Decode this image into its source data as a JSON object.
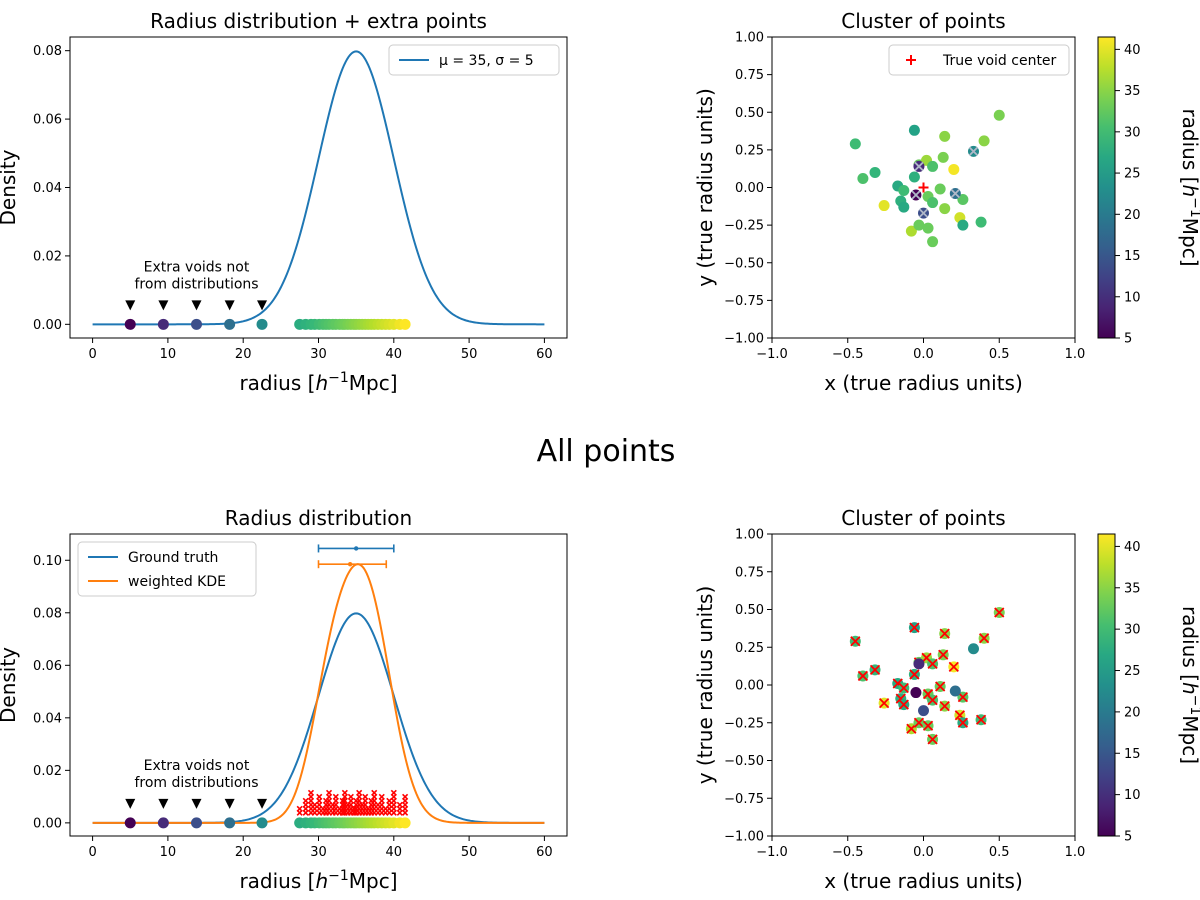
{
  "figure": {
    "suptitle": "All points"
  },
  "chart_data": [
    {
      "id": "top-left",
      "type": "line",
      "title": "Radius distribution + extra points",
      "xlabel": "radius [h⁻¹Mpc]",
      "ylabel": "Density",
      "xlim": [
        -3,
        63
      ],
      "ylim": [
        -0.004,
        0.084
      ],
      "xticks": [
        0,
        10,
        20,
        30,
        40,
        50,
        60
      ],
      "yticks": [
        0.0,
        0.02,
        0.04,
        0.06,
        0.08
      ],
      "yticklabels": [
        "0.00",
        "0.02",
        "0.04",
        "0.06",
        "0.08"
      ],
      "series": [
        {
          "name": "μ = 35, σ = 5",
          "kind": "gaussian",
          "mu": 35,
          "sigma": 5,
          "color": "#1f77b4"
        }
      ],
      "legend": {
        "position": "top-right",
        "entries": [
          {
            "label": "μ = 35, σ = 5",
            "color": "#1f77b4"
          }
        ]
      },
      "extra_voids": [
        5,
        9.4,
        13.8,
        18.2,
        22.5
      ],
      "points": [
        27.5,
        28.3,
        29.0,
        29.5,
        30.1,
        30.6,
        31.0,
        31.4,
        31.9,
        32.3,
        32.8,
        33.2,
        33.5,
        33.9,
        34.3,
        34.7,
        35.0,
        35.4,
        35.8,
        36.2,
        36.6,
        37.0,
        37.4,
        37.9,
        38.4,
        38.9,
        39.4,
        40.0,
        40.8,
        41.5
      ],
      "annotation": [
        "Extra voids not",
        "from distributions"
      ],
      "colormap": "viridis",
      "cmin": 5,
      "cmax": 41.5
    },
    {
      "id": "top-right",
      "type": "scatter",
      "title": "Cluster of points",
      "xlabel": "x (true radius units)",
      "ylabel": "y (true radius units)",
      "xlim": [
        -1,
        1
      ],
      "ylim": [
        -1,
        1
      ],
      "xticks": [
        -1.0,
        -0.5,
        0.0,
        0.5,
        1.0
      ],
      "yticks": [
        -1.0,
        -0.75,
        -0.5,
        -0.25,
        0.0,
        0.25,
        0.5,
        0.75,
        1.0
      ],
      "xticklabels": [
        "−1.0",
        "−0.5",
        "0.0",
        "0.5",
        "1.0"
      ],
      "yticklabels": [
        "−1.00",
        "−0.75",
        "−0.50",
        "−0.25",
        "0.00",
        "0.25",
        "0.50",
        "0.75",
        "1.00"
      ],
      "legend": {
        "position": "top-right",
        "entries": [
          {
            "label": "True void center",
            "color": "#ff0000",
            "marker": "+"
          }
        ]
      },
      "center": [
        0,
        0
      ],
      "points": [
        {
          "x": -0.45,
          "y": 0.29,
          "r": 30
        },
        {
          "x": -0.06,
          "y": 0.38,
          "r": 26
        },
        {
          "x": 0.5,
          "y": 0.48,
          "r": 34
        },
        {
          "x": 0.4,
          "y": 0.31,
          "r": 35
        },
        {
          "x": 0.14,
          "y": 0.34,
          "r": 35
        },
        {
          "x": 0.13,
          "y": 0.2,
          "r": 34
        },
        {
          "x": -0.4,
          "y": 0.06,
          "r": 31
        },
        {
          "x": -0.32,
          "y": 0.1,
          "r": 29
        },
        {
          "x": -0.17,
          "y": 0.01,
          "r": 27
        },
        {
          "x": -0.13,
          "y": -0.02,
          "r": 30
        },
        {
          "x": -0.06,
          "y": 0.07,
          "r": 28
        },
        {
          "x": -0.03,
          "y": 0.15,
          "r": 33
        },
        {
          "x": 0.02,
          "y": 0.18,
          "r": 36
        },
        {
          "x": 0.06,
          "y": 0.14,
          "r": 31
        },
        {
          "x": -0.26,
          "y": -0.12,
          "r": 40
        },
        {
          "x": -0.15,
          "y": -0.09,
          "r": 28
        },
        {
          "x": -0.13,
          "y": -0.13,
          "r": 27
        },
        {
          "x": 0.03,
          "y": -0.06,
          "r": 33
        },
        {
          "x": 0.06,
          "y": -0.1,
          "r": 31
        },
        {
          "x": 0.11,
          "y": -0.01,
          "r": 33
        },
        {
          "x": 0.14,
          "y": -0.14,
          "r": 35
        },
        {
          "x": 0.26,
          "y": -0.08,
          "r": 32
        },
        {
          "x": 0.24,
          "y": -0.2,
          "r": 39
        },
        {
          "x": 0.26,
          "y": -0.25,
          "r": 27
        },
        {
          "x": 0.38,
          "y": -0.23,
          "r": 30
        },
        {
          "x": 0.2,
          "y": 0.12,
          "r": 41
        },
        {
          "x": -0.08,
          "y": -0.29,
          "r": 37
        },
        {
          "x": -0.03,
          "y": -0.25,
          "r": 33
        },
        {
          "x": 0.06,
          "y": -0.36,
          "r": 33
        },
        {
          "x": 0.03,
          "y": -0.27,
          "r": 33
        },
        {
          "x": -0.05,
          "y": -0.05,
          "r": 5,
          "extra": true
        },
        {
          "x": -0.03,
          "y": 0.14,
          "r": 9.4,
          "extra": true
        },
        {
          "x": 0.0,
          "y": -0.17,
          "r": 13.8,
          "extra": true
        },
        {
          "x": 0.21,
          "y": -0.04,
          "r": 18.2,
          "extra": true
        },
        {
          "x": 0.33,
          "y": 0.24,
          "r": 22.5,
          "extra": true
        }
      ],
      "colorbar": {
        "label": "radius [h⁻¹Mpc]",
        "min": 5,
        "max": 41.5,
        "ticks": [
          5,
          10,
          15,
          20,
          25,
          30,
          35,
          40
        ]
      }
    },
    {
      "id": "bottom-left",
      "type": "line",
      "title": "Radius distribution",
      "xlabel": "radius [h⁻¹Mpc]",
      "ylabel": "Density",
      "xlim": [
        -3,
        63
      ],
      "ylim": [
        -0.005,
        0.11
      ],
      "xticks": [
        0,
        10,
        20,
        30,
        40,
        50,
        60
      ],
      "yticks": [
        0.0,
        0.02,
        0.04,
        0.06,
        0.08,
        0.1
      ],
      "yticklabels": [
        "0.00",
        "0.02",
        "0.04",
        "0.06",
        "0.08",
        "0.10"
      ],
      "series": [
        {
          "name": "Ground truth",
          "kind": "gaussian",
          "mu": 35,
          "sigma": 5,
          "color": "#1f77b4"
        },
        {
          "name": "weighted KDE",
          "kind": "mixture",
          "color": "#ff7f0e",
          "components": [
            {
              "w": 0.28,
              "mu": 31.5,
              "sigma": 2.7
            },
            {
              "w": 0.72,
              "mu": 36.3,
              "sigma": 3.3
            }
          ]
        }
      ],
      "legend": {
        "position": "top-left",
        "entries": [
          {
            "label": "Ground truth",
            "color": "#1f77b4"
          },
          {
            "label": "weighted KDE",
            "color": "#ff7f0e"
          }
        ]
      },
      "errorbars": [
        {
          "center": 35,
          "low": 30,
          "high": 40,
          "y": 0.1045,
          "color": "#1f77b4"
        },
        {
          "center": 34.2,
          "low": 30,
          "high": 39,
          "y": 0.0985,
          "color": "#ff7f0e"
        }
      ],
      "extra_voids": [
        5,
        9.4,
        13.8,
        18.2,
        22.5
      ],
      "points": [
        27.5,
        28.3,
        29.0,
        29.5,
        30.1,
        30.6,
        31.0,
        31.4,
        31.9,
        32.3,
        32.8,
        33.2,
        33.5,
        33.9,
        34.3,
        34.7,
        35.0,
        35.4,
        35.8,
        36.2,
        36.6,
        37.0,
        37.4,
        37.9,
        38.4,
        38.9,
        39.4,
        40.0,
        40.8,
        41.5
      ],
      "annotation": [
        "Extra voids not",
        "from distributions"
      ],
      "colormap": "viridis",
      "cmin": 5,
      "cmax": 41.5
    },
    {
      "id": "bottom-right",
      "type": "scatter",
      "title": "Cluster of points",
      "xlabel": "x (true radius units)",
      "ylabel": "y (true radius units)",
      "xlim": [
        -1,
        1
      ],
      "ylim": [
        -1,
        1
      ],
      "xticks": [
        -1.0,
        -0.5,
        0.0,
        0.5,
        1.0
      ],
      "yticks": [
        -1.0,
        -0.75,
        -0.5,
        -0.25,
        0.0,
        0.25,
        0.5,
        0.75,
        1.0
      ],
      "xticklabels": [
        "−1.0",
        "−0.5",
        "0.0",
        "0.5",
        "1.0"
      ],
      "yticklabels": [
        "−1.00",
        "−0.75",
        "−0.50",
        "−0.25",
        "0.00",
        "0.25",
        "0.50",
        "0.75",
        "1.00"
      ],
      "points_ref": "top-right",
      "colorbar": {
        "label": "radius [h⁻¹Mpc]",
        "min": 5,
        "max": 41.5,
        "ticks": [
          5,
          10,
          15,
          20,
          25,
          30,
          35,
          40
        ]
      }
    }
  ]
}
